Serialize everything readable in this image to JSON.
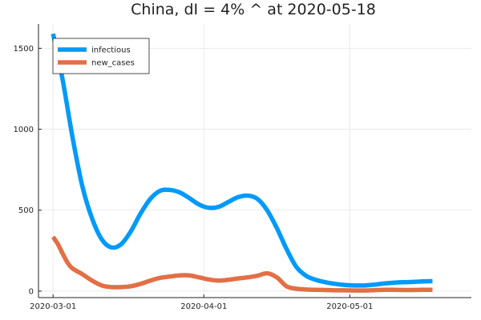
{
  "chart_data": {
    "type": "line",
    "title": "China,  dI = 4% ^ at 2020-05-18",
    "xlabel": "",
    "ylabel": "",
    "x_ticks": [
      {
        "date": "2020-03-01",
        "label": "2020-03-01"
      },
      {
        "date": "2020-04-01",
        "label": "2020-04-01"
      },
      {
        "date": "2020-05-01",
        "label": "2020-05-01"
      }
    ],
    "y_ticks": [
      0,
      500,
      1000,
      1500
    ],
    "xlim": [
      "2020-02-27",
      "2020-05-26"
    ],
    "ylim": [
      -40,
      1650
    ],
    "grid": true,
    "legend_position": "top-left",
    "series": [
      {
        "name": "infectious",
        "color": "#009AFA",
        "points": [
          [
            "2020-03-01",
            1590
          ],
          [
            "2020-03-03",
            1300
          ],
          [
            "2020-03-05",
            950
          ],
          [
            "2020-03-07",
            650
          ],
          [
            "2020-03-09",
            450
          ],
          [
            "2020-03-11",
            320
          ],
          [
            "2020-03-13",
            270
          ],
          [
            "2020-03-15",
            290
          ],
          [
            "2020-03-17",
            370
          ],
          [
            "2020-03-19",
            480
          ],
          [
            "2020-03-21",
            570
          ],
          [
            "2020-03-23",
            620
          ],
          [
            "2020-03-25",
            625
          ],
          [
            "2020-03-27",
            610
          ],
          [
            "2020-03-29",
            575
          ],
          [
            "2020-03-31",
            535
          ],
          [
            "2020-04-02",
            515
          ],
          [
            "2020-04-04",
            520
          ],
          [
            "2020-04-06",
            550
          ],
          [
            "2020-04-08",
            580
          ],
          [
            "2020-04-10",
            590
          ],
          [
            "2020-04-12",
            570
          ],
          [
            "2020-04-14",
            500
          ],
          [
            "2020-04-16",
            390
          ],
          [
            "2020-04-18",
            260
          ],
          [
            "2020-04-20",
            150
          ],
          [
            "2020-04-22",
            95
          ],
          [
            "2020-04-24",
            70
          ],
          [
            "2020-04-26",
            55
          ],
          [
            "2020-04-28",
            45
          ],
          [
            "2020-04-30",
            38
          ],
          [
            "2020-05-02",
            35
          ],
          [
            "2020-05-04",
            35
          ],
          [
            "2020-05-06",
            40
          ],
          [
            "2020-05-08",
            47
          ],
          [
            "2020-05-10",
            52
          ],
          [
            "2020-05-12",
            55
          ],
          [
            "2020-05-14",
            57
          ],
          [
            "2020-05-16",
            60
          ],
          [
            "2020-05-18",
            62
          ]
        ]
      },
      {
        "name": "new_cases",
        "color": "#E26F46",
        "points": [
          [
            "2020-03-01",
            335
          ],
          [
            "2020-03-02",
            290
          ],
          [
            "2020-03-03",
            230
          ],
          [
            "2020-03-04",
            175
          ],
          [
            "2020-03-05",
            140
          ],
          [
            "2020-03-07",
            105
          ],
          [
            "2020-03-09",
            65
          ],
          [
            "2020-03-11",
            35
          ],
          [
            "2020-03-13",
            25
          ],
          [
            "2020-03-15",
            25
          ],
          [
            "2020-03-17",
            30
          ],
          [
            "2020-03-19",
            45
          ],
          [
            "2020-03-21",
            65
          ],
          [
            "2020-03-23",
            82
          ],
          [
            "2020-03-25",
            90
          ],
          [
            "2020-03-27",
            97
          ],
          [
            "2020-03-29",
            97
          ],
          [
            "2020-03-31",
            85
          ],
          [
            "2020-04-02",
            72
          ],
          [
            "2020-04-04",
            65
          ],
          [
            "2020-04-06",
            70
          ],
          [
            "2020-04-08",
            78
          ],
          [
            "2020-04-10",
            85
          ],
          [
            "2020-04-12",
            95
          ],
          [
            "2020-04-14",
            110
          ],
          [
            "2020-04-16",
            85
          ],
          [
            "2020-04-18",
            30
          ],
          [
            "2020-04-20",
            15
          ],
          [
            "2020-04-22",
            10
          ],
          [
            "2020-04-24",
            8
          ],
          [
            "2020-04-26",
            7
          ],
          [
            "2020-04-28",
            5
          ],
          [
            "2020-04-30",
            5
          ],
          [
            "2020-05-02",
            4
          ],
          [
            "2020-05-04",
            4
          ],
          [
            "2020-05-06",
            6
          ],
          [
            "2020-05-08",
            8
          ],
          [
            "2020-05-10",
            8
          ],
          [
            "2020-05-12",
            7
          ],
          [
            "2020-05-14",
            7
          ],
          [
            "2020-05-16",
            8
          ],
          [
            "2020-05-18",
            8
          ]
        ]
      }
    ]
  }
}
